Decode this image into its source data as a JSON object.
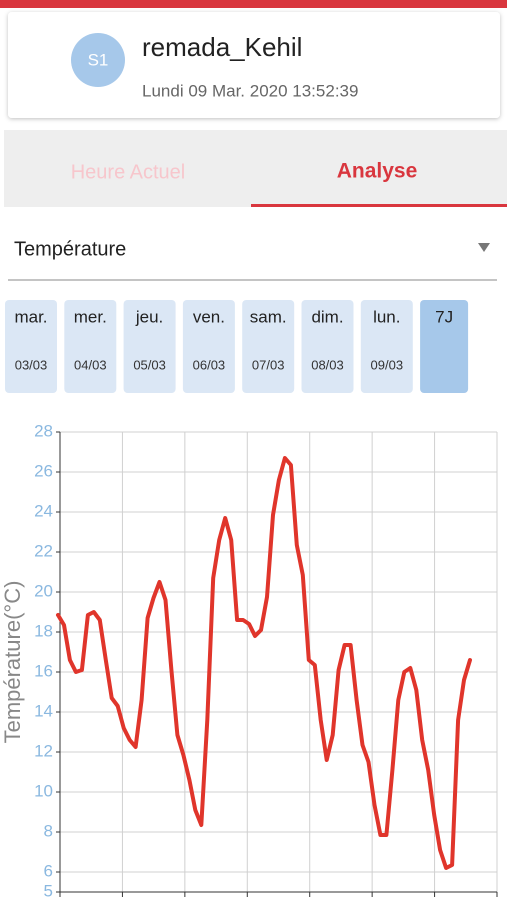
{
  "header": {
    "avatar": "S1",
    "name": "remada_Kehil",
    "datetime": "Lundi 09 Mar.  2020 13:52:39"
  },
  "tabs": [
    "Heure Actuel",
    "Analyse"
  ],
  "dropdown": "Température",
  "days": [
    {
      "day": "mar.",
      "date": "03/03"
    },
    {
      "day": "mer.",
      "date": "04/03"
    },
    {
      "day": "jeu.",
      "date": "05/03"
    },
    {
      "day": "ven.",
      "date": "06/03"
    },
    {
      "day": "sam.",
      "date": "07/03"
    },
    {
      "day": "dim.",
      "date": "08/03"
    },
    {
      "day": "lun.",
      "date": "09/03"
    }
  ],
  "range_button": "7J",
  "chart_data": {
    "type": "line",
    "ylabel": "Température(°C)",
    "color": "#e0352b",
    "values": [
      18.85,
      18.35,
      16.6,
      16.0,
      16.1,
      18.85,
      19.0,
      18.6,
      16.6,
      14.7,
      14.3,
      13.2,
      12.6,
      12.25,
      14.6,
      18.7,
      19.7,
      20.5,
      19.6,
      16.1,
      12.85,
      11.85,
      10.6,
      9.1,
      8.35,
      13.6,
      20.7,
      22.6,
      23.7,
      22.6,
      18.6,
      18.6,
      18.4,
      17.8,
      18.1,
      19.75,
      23.85,
      25.6,
      26.7,
      26.35,
      22.35,
      20.85,
      16.6,
      16.35,
      13.6,
      11.6,
      12.85,
      16.1,
      17.35,
      17.35,
      14.6,
      12.35,
      11.5,
      9.35,
      7.85,
      7.85,
      11.1,
      14.6,
      16.0,
      16.2,
      15.1,
      12.6,
      11.1,
      8.85,
      7.1,
      6.2,
      6.35,
      13.6,
      15.6,
      16.6
    ],
    "ylim": [
      5,
      28
    ],
    "yticks": [
      5,
      6,
      8,
      10,
      12,
      14,
      16,
      18,
      20,
      22,
      24,
      26,
      28
    ],
    "grid": true
  }
}
